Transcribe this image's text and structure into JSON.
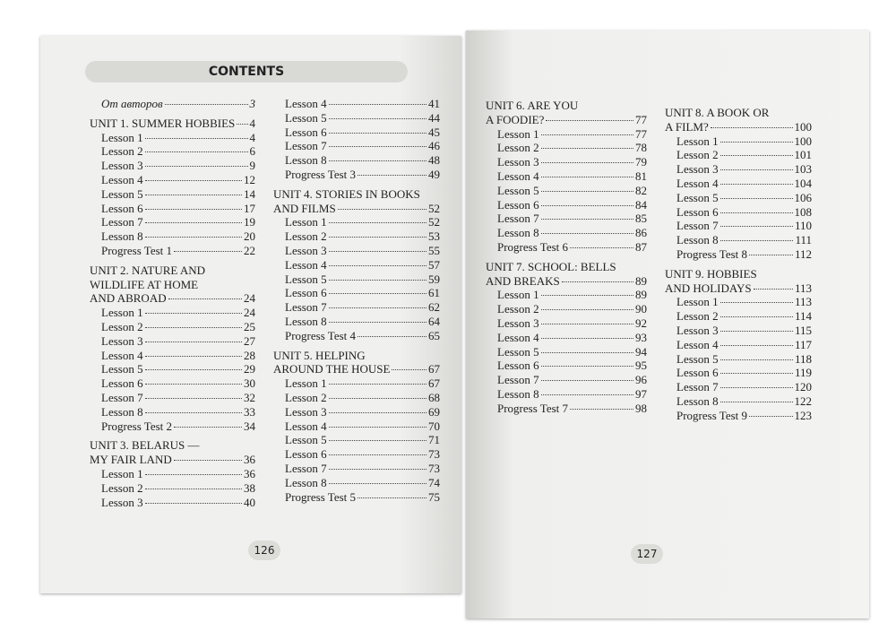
{
  "pages": [
    {
      "heading": "CONTENTS",
      "folio": "126",
      "columns": [
        [
          {
            "text": "От авторов",
            "page": "3"
          },
          {
            "lines": [
              "UNIT 1. SUMMER HOBBIES"
            ],
            "page": "4"
          },
          {
            "text": "Lesson 1",
            "page": "4"
          },
          {
            "text": "Lesson 2",
            "page": "6"
          },
          {
            "text": "Lesson 3",
            "page": "9"
          },
          {
            "text": "Lesson 4",
            "page": "12"
          },
          {
            "text": "Lesson 5",
            "page": "14"
          },
          {
            "text": "Lesson 6",
            "page": "17"
          },
          {
            "text": "Lesson 7",
            "page": "19"
          },
          {
            "text": "Lesson 8",
            "page": "20"
          },
          {
            "text": "Progress Test 1",
            "page": "22"
          },
          {
            "lines": [
              "UNIT 2. NATURE AND",
              "WILDLIFE AT HOME",
              "AND ABROAD"
            ],
            "page": "24"
          },
          {
            "text": "Lesson 1",
            "page": "24"
          },
          {
            "text": "Lesson 2",
            "page": "25"
          },
          {
            "text": "Lesson 3",
            "page": "27"
          },
          {
            "text": "Lesson 4",
            "page": "28"
          },
          {
            "text": "Lesson 5",
            "page": "29"
          },
          {
            "text": "Lesson 6",
            "page": "30"
          },
          {
            "text": "Lesson 7",
            "page": "32"
          },
          {
            "text": "Lesson 8",
            "page": "33"
          },
          {
            "text": "Progress Test 2",
            "page": "34"
          },
          {
            "lines": [
              "UNIT 3. BELARUS —",
              "MY FAIR LAND"
            ],
            "page": "36"
          },
          {
            "text": "Lesson 1",
            "page": "36"
          },
          {
            "text": "Lesson 2",
            "page": "38"
          },
          {
            "text": "Lesson 3",
            "page": "40"
          }
        ],
        [
          {
            "text": "Lesson 4",
            "page": "41"
          },
          {
            "text": "Lesson 5",
            "page": "44"
          },
          {
            "text": "Lesson 6",
            "page": "45"
          },
          {
            "text": "Lesson 7",
            "page": "46"
          },
          {
            "text": "Lesson 8",
            "page": "48"
          },
          {
            "text": "Progress Test 3",
            "page": "49"
          },
          {
            "lines": [
              "UNIT 4. STORIES IN BOOKS",
              "AND FILMS"
            ],
            "page": "52"
          },
          {
            "text": "Lesson 1",
            "page": "52"
          },
          {
            "text": "Lesson 2",
            "page": "53"
          },
          {
            "text": "Lesson 3",
            "page": "55"
          },
          {
            "text": "Lesson 4",
            "page": "57"
          },
          {
            "text": "Lesson 5",
            "page": "59"
          },
          {
            "text": "Lesson 6",
            "page": "61"
          },
          {
            "text": "Lesson 7",
            "page": "62"
          },
          {
            "text": "Lesson 8",
            "page": "64"
          },
          {
            "text": "Progress Test 4",
            "page": "65"
          },
          {
            "lines": [
              "UNIT 5. HELPING",
              "AROUND THE HOUSE"
            ],
            "page": "67"
          },
          {
            "text": "Lesson 1",
            "page": "67"
          },
          {
            "text": "Lesson 2",
            "page": "68"
          },
          {
            "text": "Lesson 3",
            "page": "69"
          },
          {
            "text": "Lesson 4",
            "page": "70"
          },
          {
            "text": "Lesson 5",
            "page": "71"
          },
          {
            "text": "Lesson 6",
            "page": "73"
          },
          {
            "text": "Lesson 7",
            "page": "73"
          },
          {
            "text": "Lesson 8",
            "page": "74"
          },
          {
            "text": "Progress Test 5",
            "page": "75"
          }
        ]
      ]
    },
    {
      "folio": "127",
      "columns": [
        [
          {
            "lines": [
              "UNIT 6. ARE YOU",
              "A FOODIE?"
            ],
            "page": "77"
          },
          {
            "text": "Lesson 1",
            "page": "77"
          },
          {
            "text": "Lesson 2",
            "page": "78"
          },
          {
            "text": "Lesson 3",
            "page": "79"
          },
          {
            "text": "Lesson 4",
            "page": "81"
          },
          {
            "text": "Lesson 5",
            "page": "82"
          },
          {
            "text": "Lesson 6",
            "page": "84"
          },
          {
            "text": "Lesson 7",
            "page": "85"
          },
          {
            "text": "Lesson 8",
            "page": "86"
          },
          {
            "text": "Progress Test 6",
            "page": "87"
          },
          {
            "lines": [
              "UNIT 7. SCHOOL: BELLS",
              "AND BREAKS"
            ],
            "page": "89"
          },
          {
            "text": "Lesson 1",
            "page": "89"
          },
          {
            "text": "Lesson 2",
            "page": "90"
          },
          {
            "text": "Lesson 3",
            "page": "92"
          },
          {
            "text": "Lesson 4",
            "page": "93"
          },
          {
            "text": "Lesson 5",
            "page": "94"
          },
          {
            "text": "Lesson 6",
            "page": "95"
          },
          {
            "text": "Lesson 7",
            "page": "96"
          },
          {
            "text": "Lesson 8",
            "page": "97"
          },
          {
            "text": "Progress Test 7",
            "page": "98"
          }
        ],
        [
          {
            "lines": [
              "UNIT 8. A BOOK OR",
              "A FILM?"
            ],
            "page": "100"
          },
          {
            "text": "Lesson 1",
            "page": "100"
          },
          {
            "text": "Lesson 2",
            "page": "101"
          },
          {
            "text": "Lesson 3",
            "page": "103"
          },
          {
            "text": "Lesson 4",
            "page": "104"
          },
          {
            "text": "Lesson 5",
            "page": "106"
          },
          {
            "text": "Lesson 6",
            "page": "108"
          },
          {
            "text": "Lesson 7",
            "page": "110"
          },
          {
            "text": "Lesson 8",
            "page": "111"
          },
          {
            "text": "Progress Test 8",
            "page": "112"
          },
          {
            "lines": [
              "UNIT 9. HOBBIES",
              "AND HOLIDAYS"
            ],
            "page": "113"
          },
          {
            "text": "Lesson 1",
            "page": "113"
          },
          {
            "text": "Lesson 2",
            "page": "114"
          },
          {
            "text": "Lesson 3",
            "page": "115"
          },
          {
            "text": "Lesson 4",
            "page": "117"
          },
          {
            "text": "Lesson 5",
            "page": "118"
          },
          {
            "text": "Lesson 6",
            "page": "119"
          },
          {
            "text": "Lesson 7",
            "page": "120"
          },
          {
            "text": "Lesson 8",
            "page": "122"
          },
          {
            "text": "Progress Test 9",
            "page": "123"
          }
        ]
      ]
    }
  ]
}
